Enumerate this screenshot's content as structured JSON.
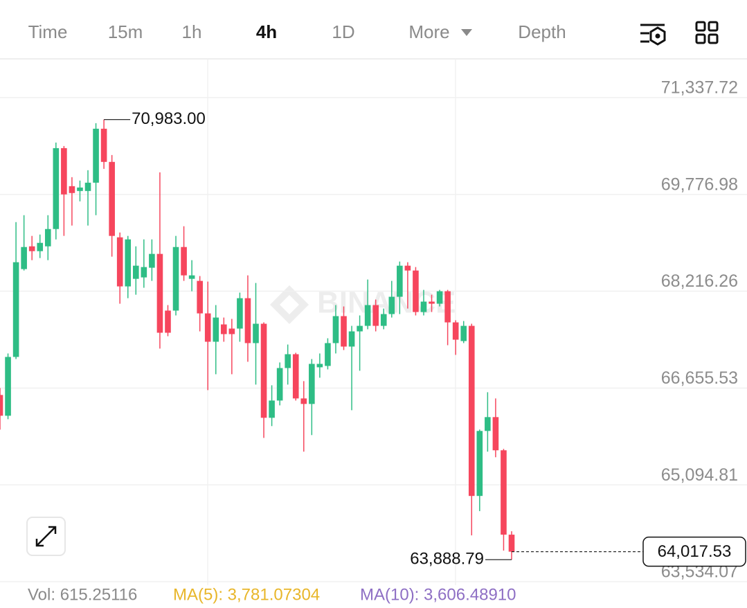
{
  "tabs": [
    "Time",
    "15m",
    "1h",
    "4h",
    "1D",
    "More",
    "Depth"
  ],
  "active_tab": 3,
  "chart_data": {
    "type": "candlestick",
    "watermark": "BINANCE",
    "categories": [
      null,
      null,
      null,
      null,
      null,
      null,
      null,
      null,
      null,
      null,
      null,
      null,
      null,
      null,
      null,
      null,
      null,
      null,
      null,
      null,
      null,
      null,
      null,
      null,
      null,
      null,
      null,
      null,
      null,
      null,
      null,
      null,
      null,
      null,
      null,
      null,
      null,
      null,
      null,
      null,
      null,
      null,
      null,
      null,
      null,
      null,
      null,
      null,
      null,
      null,
      null,
      null,
      null,
      null,
      null,
      null,
      null,
      null,
      null,
      null,
      null,
      null,
      null,
      null,
      null
    ],
    "open": [
      66544,
      66209,
      67157,
      68573,
      68940,
      68862,
      68940,
      69219,
      70523,
      69910,
      69832,
      69832,
      69966,
      70836,
      70301,
      69085,
      68294,
      68416,
      68439,
      68595,
      68818,
      67904,
      67904,
      68929,
      68416,
      68383,
      67859,
      67402,
      67681,
      67614,
      67614,
      68104,
      67380,
      67692,
      66176,
      66454,
      66978,
      67201,
      66488,
      66399,
      66990,
      67012,
      67380,
      67815,
      67324,
      67569,
      67658,
      67993,
      67658,
      67848,
      68127,
      68628,
      68550,
      67881,
      68049,
      68015,
      68216,
      67714,
      67413,
      67658,
      64916,
      65964,
      66187,
      65652,
      64292
    ],
    "high": [
      66655,
      67213,
      69331,
      69442,
      69108,
      69130,
      69442,
      70613,
      70557,
      70055,
      70000,
      70167,
      70925,
      70983,
      70412,
      69163,
      69108,
      68940,
      69052,
      69052,
      70133,
      67993,
      69108,
      69264,
      68717,
      68461,
      68372,
      67993,
      67792,
      67770,
      68194,
      68472,
      68350,
      67714,
      66700,
      67068,
      67357,
      67224,
      66767,
      67123,
      67213,
      67458,
      67993,
      67971,
      67658,
      67826,
      68405,
      68082,
      67937,
      68383,
      68695,
      68684,
      68606,
      68238,
      68160,
      68238,
      68238,
      67748,
      67736,
      67692,
      65986,
      66588,
      66488,
      65674,
      64347
    ],
    "low": [
      65986,
      66153,
      67123,
      68550,
      68717,
      68751,
      68717,
      69052,
      69108,
      69275,
      69665,
      69275,
      69442,
      70189,
      68773,
      68015,
      68104,
      68160,
      68272,
      68383,
      67291,
      67491,
      67826,
      68383,
      68216,
      67569,
      66622,
      66878,
      67402,
      66878,
      67402,
      67079,
      66711,
      65852,
      66042,
      66376,
      66711,
      66454,
      65630,
      65897,
      66822,
      66956,
      67213,
      67268,
      66298,
      66934,
      67603,
      67569,
      67603,
      67792,
      67848,
      67937,
      67826,
      67826,
      67881,
      67971,
      67346,
      67190,
      67380,
      64281,
      64671,
      65630,
      65540,
      64035,
      63888.79
    ],
    "close": [
      66209,
      67157,
      68684,
      68929,
      68862,
      68996,
      69219,
      70523,
      69777,
      69799,
      69888,
      69966,
      70836,
      70301,
      69108,
      68294,
      69052,
      68628,
      68606,
      68818,
      67547,
      67547,
      68929,
      68472,
      68472,
      67859,
      67402,
      67792,
      67525,
      67525,
      68104,
      67380,
      67692,
      66176,
      66454,
      66978,
      67201,
      66488,
      66399,
      67045,
      67045,
      67380,
      67815,
      67324,
      67569,
      67658,
      67993,
      67658,
      67848,
      68127,
      68628,
      68550,
      67881,
      68049,
      68015,
      68216,
      67714,
      67435,
      67658,
      64916,
      65964,
      66187,
      65652,
      64292,
      64017.53
    ],
    "up_color": "#2ebd85",
    "down_color": "#f6465d",
    "ylim": [
      63478,
      71951
    ],
    "yticks": [
      {
        "value": 71337.72,
        "label": "71,337.72"
      },
      {
        "value": 69776.98,
        "label": "69,776.98"
      },
      {
        "value": 68216.26,
        "label": "68,216.26"
      },
      {
        "value": 66655.53,
        "label": "66,655.53"
      },
      {
        "value": 65094.81,
        "label": "65,094.81"
      },
      {
        "value": 63534.07,
        "label": "63,534.07"
      }
    ],
    "grid": true,
    "high_label": {
      "value": 70983,
      "label": "70,983.00"
    },
    "low_label": {
      "value": 63888.79,
      "label": "63,888.79"
    },
    "last_price": {
      "value": 64017.53,
      "label": "64,017.53"
    }
  },
  "footer": {
    "volume": "Vol: 615.25116",
    "ma5": "MA(5): 3,781.07304",
    "ma10": "MA(10): 3,606.48910"
  }
}
